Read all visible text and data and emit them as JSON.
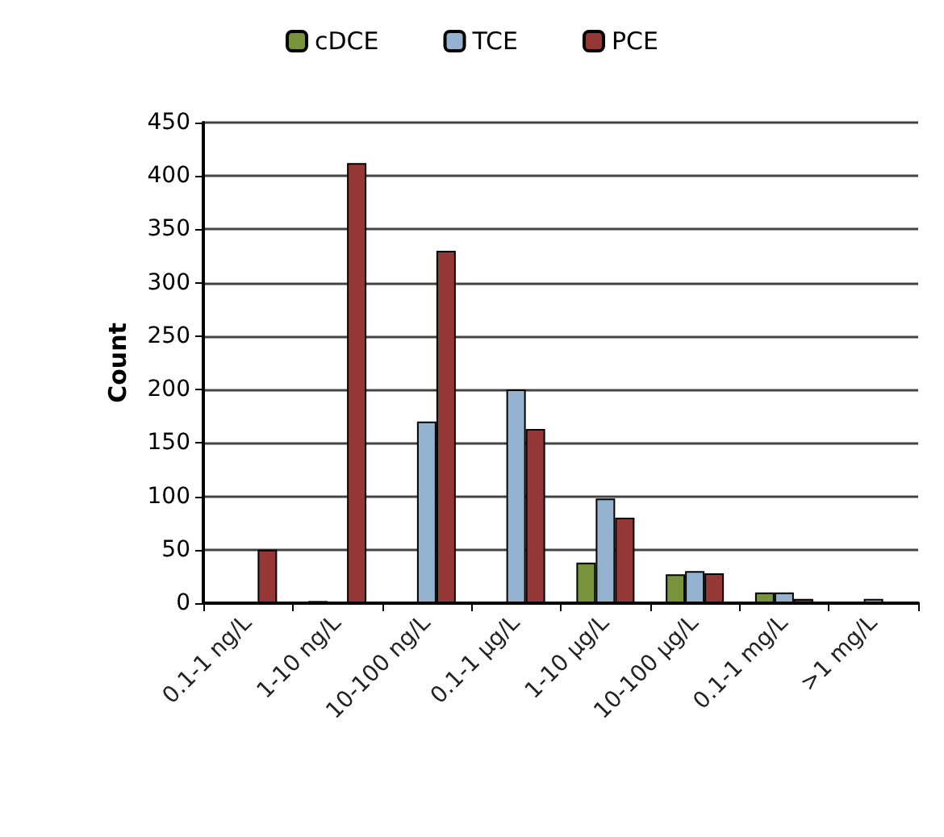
{
  "chart_data": {
    "type": "bar",
    "ylabel": "Count",
    "categories": [
      "0.1-1 ng/L",
      "1-10 ng/L",
      "10-100 ng/L",
      "0.1-1 µg/L",
      "1-10 µg/L",
      "10-100 µg/L",
      "0.1-1 mg/L",
      ">1 mg/L"
    ],
    "series": [
      {
        "name": "cDCE",
        "color": "#77933c",
        "values": [
          0,
          2,
          0,
          0,
          38,
          27,
          10,
          0
        ]
      },
      {
        "name": "TCE",
        "color": "#93b3d0",
        "values": [
          0,
          null,
          170,
          200,
          98,
          30,
          10,
          4
        ]
      },
      {
        "name": "PCE",
        "color": "#953735",
        "values": [
          50,
          412,
          330,
          163,
          80,
          28,
          4,
          0
        ]
      }
    ],
    "ylim": [
      0,
      450
    ],
    "yticks": [
      0,
      50,
      100,
      150,
      200,
      250,
      300,
      350,
      400,
      450
    ],
    "grid": "y",
    "legend": "top"
  }
}
